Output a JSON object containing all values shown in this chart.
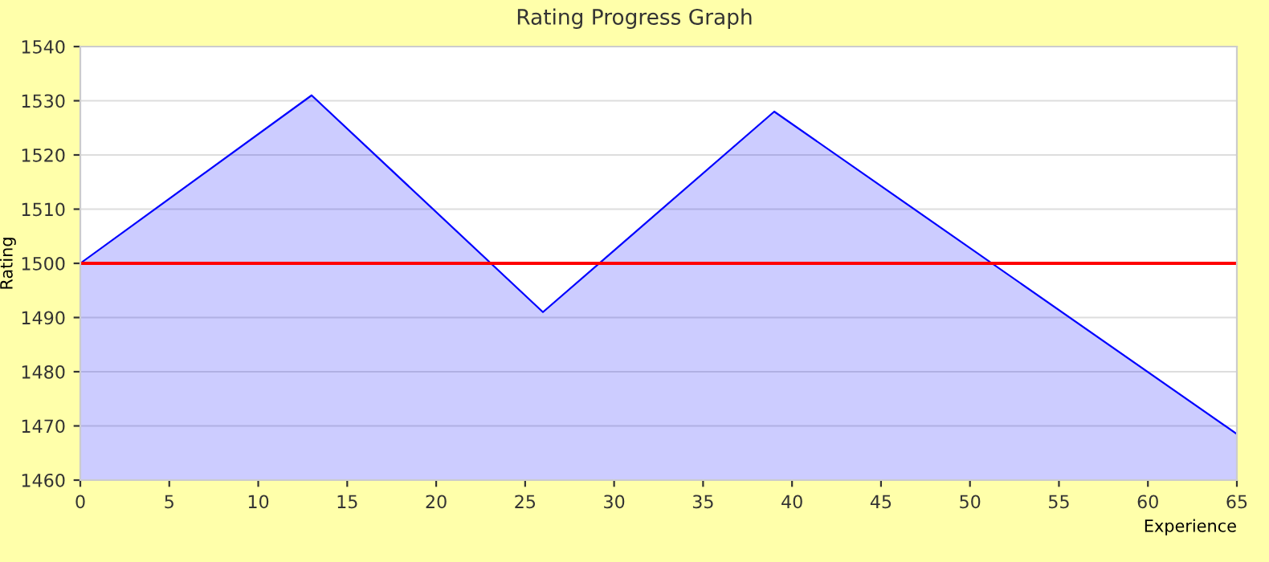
{
  "chart_data": {
    "type": "area",
    "title": "Rating Progress Graph",
    "xlabel": "Experience",
    "ylabel": "Rating",
    "x": [
      0,
      13,
      26,
      39,
      65
    ],
    "series": [
      {
        "color": "#0000ff",
        "values": [
          1500,
          1531,
          1491,
          1528,
          1468.5
        ]
      }
    ],
    "xlim": [
      0,
      65
    ],
    "xticks": [
      0,
      5,
      10,
      15,
      20,
      25,
      30,
      35,
      40,
      45,
      50,
      55,
      60,
      65
    ],
    "ylim": [
      1460,
      1540
    ],
    "yticks": [
      1460,
      1470,
      1480,
      1490,
      1500,
      1510,
      1520,
      1530,
      1540
    ],
    "grid": "y",
    "ref_lines": [
      {
        "axis": "y",
        "value": 1500,
        "color": "#ff0000"
      }
    ]
  }
}
